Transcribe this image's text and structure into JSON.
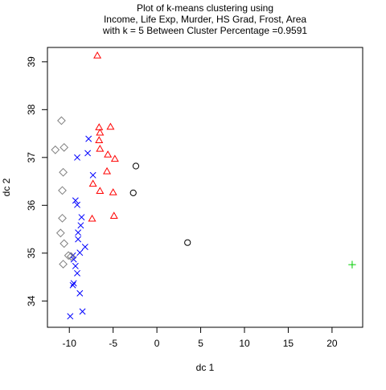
{
  "chart_data": {
    "type": "scatter",
    "title_lines": [
      "Plot of k-means clustering using",
      "Income, Life Exp, Murder, HS Grad, Frost, Area",
      "with  k = 5 Between Cluster Percentage =0.9591"
    ],
    "xlabel": "dc 1",
    "ylabel": "dc 2",
    "xlim": [
      -12.5,
      23.5
    ],
    "ylim": [
      33.45,
      39.3
    ],
    "x_ticks": [
      -10,
      -5,
      0,
      5,
      10,
      15,
      20
    ],
    "x_tick_labels": [
      "-10",
      "-5",
      "0",
      "5",
      "10",
      "15",
      "20"
    ],
    "y_ticks": [
      34,
      35,
      36,
      37,
      38,
      39
    ],
    "y_tick_labels": [
      "34",
      "35",
      "36",
      "37",
      "38",
      "39"
    ],
    "grid": false,
    "legend": "none",
    "series": [
      {
        "marker": "circle",
        "color": "#000000",
        "x": [
          -2.4,
          -2.7,
          3.5
        ],
        "y": [
          36.82,
          36.26,
          35.22
        ]
      },
      {
        "marker": "triangle",
        "color": "#ff0000",
        "x": [
          -6.8,
          -6.6,
          -5.3,
          -6.5,
          -6.6,
          -6.5,
          -5.6,
          -4.8,
          -5.7,
          -7.3,
          -6.5,
          -5.0,
          -7.4,
          -4.9
        ],
        "y": [
          39.13,
          37.63,
          37.64,
          37.52,
          37.36,
          37.18,
          37.06,
          36.97,
          36.71,
          36.45,
          36.3,
          36.27,
          35.72,
          35.78
        ]
      },
      {
        "marker": "cross",
        "color": "#0000ff",
        "x": [
          -7.8,
          -7.9,
          -9.1,
          -7.3,
          -9.3,
          -9.1,
          -8.6,
          -8.7,
          -8.2,
          -9.0,
          -9.0,
          -8.8,
          -9.6,
          -9.5,
          -9.3,
          -9.1,
          -9.5,
          -9.6,
          -8.8,
          -8.5,
          -9.9
        ],
        "y": [
          37.39,
          37.09,
          37.0,
          36.63,
          36.1,
          36.01,
          35.75,
          35.58,
          35.13,
          35.43,
          35.29,
          35.01,
          34.95,
          34.87,
          34.73,
          34.58,
          34.37,
          34.33,
          34.16,
          33.78,
          33.68
        ]
      },
      {
        "marker": "diamond",
        "color": "#808080",
        "x": [
          -10.9,
          -10.6,
          -11.6,
          -10.7,
          -10.8,
          -10.8,
          -11.0,
          -10.6,
          -10.1,
          -9.8,
          -10.7
        ],
        "y": [
          37.77,
          37.21,
          37.16,
          36.69,
          36.31,
          35.73,
          35.42,
          35.2,
          34.95,
          34.93,
          34.77
        ]
      },
      {
        "marker": "plus",
        "color": "#00cd00",
        "x": [
          22.3
        ],
        "y": [
          34.76
        ]
      }
    ]
  }
}
